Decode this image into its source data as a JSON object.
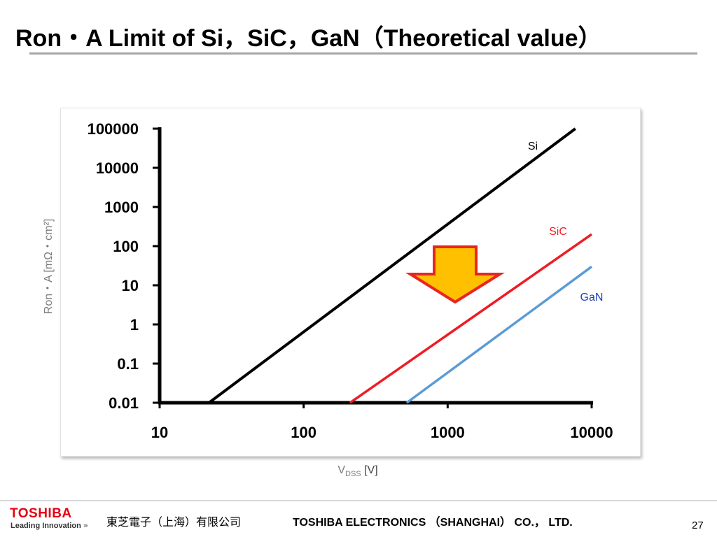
{
  "slide": {
    "title": "Ron・A Limit of Si，SiC，GaN（Theoretical value）",
    "page_number": "27"
  },
  "footer": {
    "logo": "TOSHIBA",
    "tagline": "Leading Innovation",
    "company_cn": "東芝電子（上海）有限公司",
    "company_en": "TOSHIBA ELECTRONICS （SHANGHAI） CO.， LTD."
  },
  "colors": {
    "si": "#000000",
    "sic": "#ee1c25",
    "gan": "#5b9bd5",
    "arrow_fill": "#ffc000",
    "arrow_stroke": "#e8261f",
    "logo": "#e60012"
  },
  "icons": {
    "arrow": "down-arrow-icon",
    "tagline": "chevron-right-icon"
  },
  "chart_data": {
    "type": "line",
    "xscale": "log",
    "yscale": "log",
    "xlim": [
      10,
      10000
    ],
    "ylim": [
      0.01,
      100000
    ],
    "xlabel_main": "V",
    "xlabel_sub": "DSS",
    "xlabel_unit": "[V]",
    "ylabel": "Ron・A [mΩ・cm²]",
    "xticks": [
      "10",
      "100",
      "1000",
      "10000"
    ],
    "yticks": [
      "0.01",
      "0.1",
      "1",
      "10",
      "100",
      "1000",
      "10000",
      "100000"
    ],
    "grid": false,
    "series": [
      {
        "name": "Si",
        "color": "#000000",
        "x": [
          22,
          7700
        ],
        "y": [
          0.01,
          100000
        ]
      },
      {
        "name": "SiC",
        "color": "#ee1c25",
        "x": [
          210,
          10000
        ],
        "y": [
          0.01,
          200
        ]
      },
      {
        "name": "GaN",
        "color": "#5b9bd5",
        "x": [
          520,
          10000
        ],
        "y": [
          0.01,
          30
        ]
      }
    ]
  }
}
